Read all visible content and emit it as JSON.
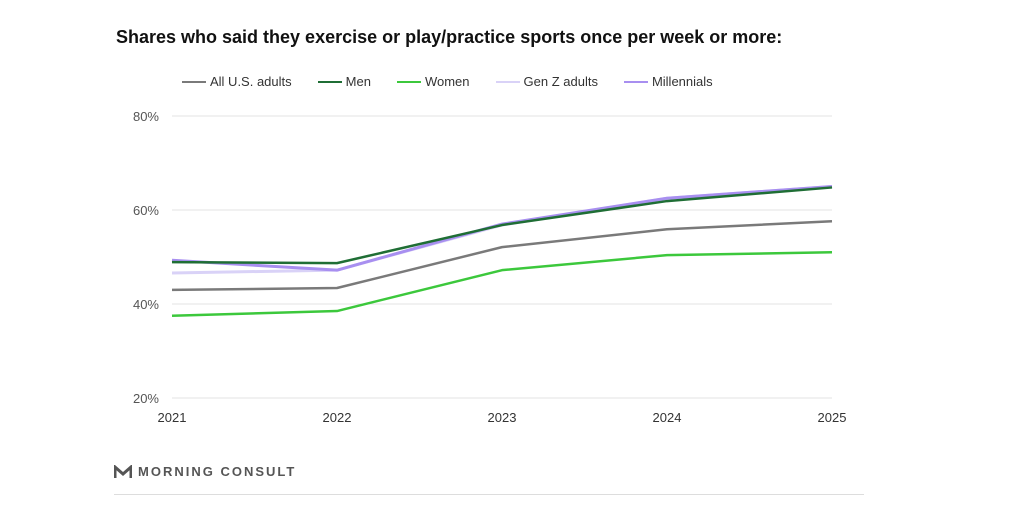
{
  "chart_data": {
    "type": "line",
    "title": "Shares who said they exercise or play/practice sports once per week or more:",
    "x": [
      "2021",
      "2022",
      "2023",
      "2024",
      "2025"
    ],
    "yticks": [
      "20%",
      "40%",
      "60%",
      "80%"
    ],
    "ylim": [
      20,
      80
    ],
    "grid": true,
    "legend": "top",
    "series": [
      {
        "name": "All U.S. adults",
        "color": "#7a7a7a",
        "values": [
          43.0,
          43.4,
          52.1,
          55.9,
          57.6
        ]
      },
      {
        "name": "Men",
        "color": "#1f6e35",
        "values": [
          48.9,
          48.7,
          56.8,
          61.9,
          64.8
        ]
      },
      {
        "name": "Women",
        "color": "#3cc83c",
        "values": [
          37.5,
          38.5,
          47.2,
          50.4,
          51.0
        ]
      },
      {
        "name": "Gen Z adults",
        "color": "#d9d2f7",
        "values": [
          46.6,
          47.2,
          56.8,
          62.5,
          65.0
        ]
      },
      {
        "name": "Millennials",
        "color": "#a88ff0",
        "values": [
          49.3,
          47.2,
          57.0,
          62.5,
          65.0
        ]
      }
    ]
  },
  "footer": {
    "brand": "MORNING CONSULT"
  }
}
